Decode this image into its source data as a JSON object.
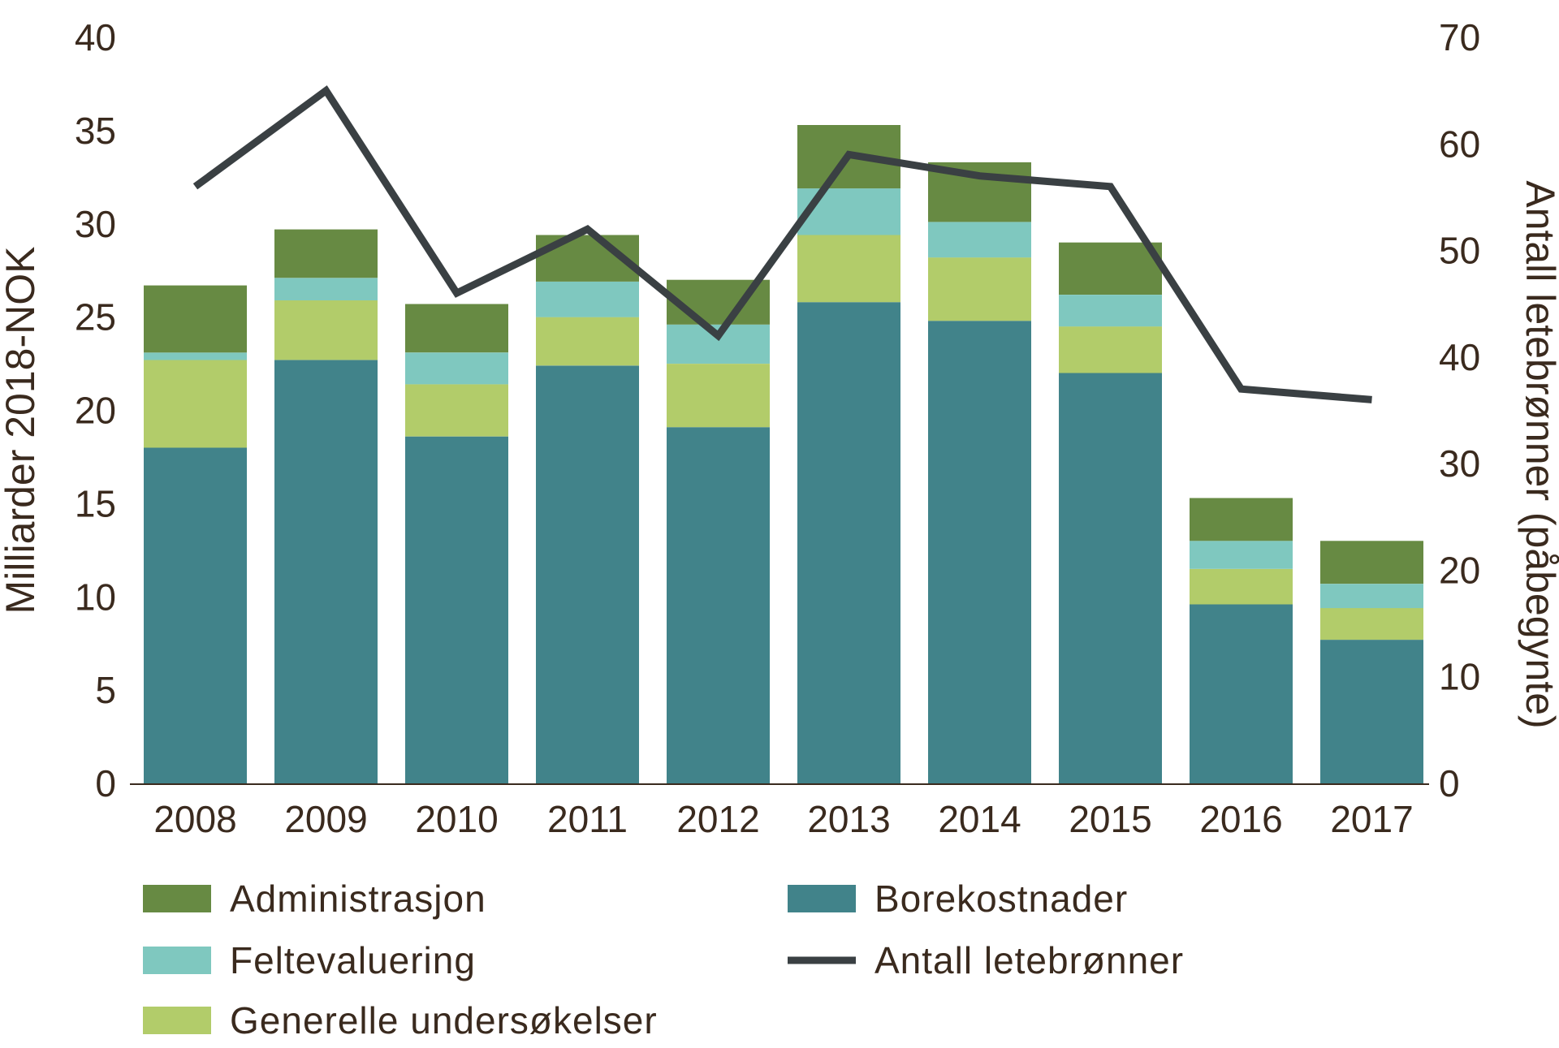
{
  "chart_data": {
    "type": "bar",
    "stacked": true,
    "categories": [
      "2008",
      "2009",
      "2010",
      "2011",
      "2012",
      "2013",
      "2014",
      "2015",
      "2016",
      "2017"
    ],
    "series": [
      {
        "name": "Borekostnader",
        "color": "#41838a",
        "values": [
          18.0,
          22.7,
          18.6,
          22.4,
          19.1,
          25.8,
          24.8,
          22.0,
          9.6,
          7.7
        ]
      },
      {
        "name": "Generelle undersøkelser",
        "color": "#b2cc6a",
        "values": [
          4.7,
          3.2,
          2.8,
          2.6,
          3.4,
          3.6,
          3.4,
          2.5,
          1.9,
          1.7
        ]
      },
      {
        "name": "Feltevaluering",
        "color": "#7fc8bf",
        "values": [
          0.4,
          1.2,
          1.7,
          1.9,
          2.1,
          2.5,
          1.9,
          1.7,
          1.5,
          1.3
        ]
      },
      {
        "name": "Administrasjon",
        "color": "#678a43",
        "values": [
          3.6,
          2.6,
          2.6,
          2.5,
          2.4,
          3.4,
          3.2,
          2.8,
          2.3,
          2.3
        ]
      }
    ],
    "line": {
      "name": "Antall letebrønner",
      "color": "#3a4043",
      "axis": "right",
      "values": [
        56,
        65,
        46,
        52,
        42,
        59,
        57,
        56,
        37,
        36
      ]
    },
    "ylabel": "Milliarder 2018-NOK",
    "ylim": [
      0,
      40
    ],
    "yticks": [
      "0",
      "5",
      "10",
      "15",
      "20",
      "25",
      "30",
      "35",
      "40"
    ],
    "y2label": "Antall letebrønner (påbegynte)",
    "y2lim": [
      0,
      70
    ],
    "y2ticks": [
      "0",
      "10",
      "20",
      "30",
      "40",
      "50",
      "60",
      "70"
    ],
    "legend": {
      "placement": "bottom",
      "items": [
        {
          "label": "Administrasjon",
          "color": "#678a43",
          "kind": "box"
        },
        {
          "label": "Borekostnader",
          "color": "#41838a",
          "kind": "box"
        },
        {
          "label": "Feltevaluering",
          "color": "#7fc8bf",
          "kind": "box"
        },
        {
          "label": "Antall letebrønner",
          "color": "#3a4043",
          "kind": "line"
        },
        {
          "label": "Generelle undersøkelser",
          "color": "#b2cc6a",
          "kind": "box"
        }
      ]
    }
  }
}
